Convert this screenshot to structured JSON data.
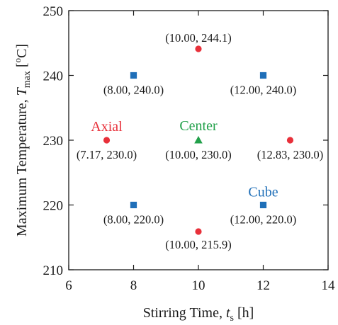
{
  "chart_data": {
    "type": "scatter",
    "xlabel_main": "Stirring Time, ",
    "xlabel_var": "t",
    "xlabel_sub": "s",
    "xlabel_unit": " [h]",
    "ylabel_main": "Maximum Temperature, ",
    "ylabel_var": "T",
    "ylabel_sub": "max",
    "ylabel_unit_open": " [",
    "ylabel_unit_sup": "o",
    "ylabel_unit_close": "C]",
    "xlim": [
      6,
      14
    ],
    "ylim": [
      210,
      250
    ],
    "xticks": [
      6,
      8,
      10,
      12,
      14
    ],
    "yticks": [
      210,
      220,
      230,
      240,
      250
    ],
    "grid": false,
    "series": [
      {
        "name": "Axial",
        "color": "#e8303a",
        "marker": "circle",
        "points": [
          {
            "x": 10.0,
            "y": 244.1,
            "label": "(10.00, 244.1)"
          },
          {
            "x": 7.17,
            "y": 230.0,
            "label": "(7.17, 230.0)"
          },
          {
            "x": 12.83,
            "y": 230.0,
            "label": "(12.83, 230.0)"
          },
          {
            "x": 10.0,
            "y": 215.9,
            "label": "(10.00, 215.9)"
          }
        ]
      },
      {
        "name": "Center",
        "color": "#22a04a",
        "marker": "triangle",
        "points": [
          {
            "x": 10.0,
            "y": 230.0,
            "label": "(10.00, 230.0)"
          }
        ]
      },
      {
        "name": "Cube",
        "color": "#1f6fb8",
        "marker": "square",
        "points": [
          {
            "x": 8.0,
            "y": 240.0,
            "label": "(8.00, 240.0)"
          },
          {
            "x": 12.0,
            "y": 240.0,
            "label": "(12.00, 240.0)"
          },
          {
            "x": 8.0,
            "y": 220.0,
            "label": "(8.00, 220.0)"
          },
          {
            "x": 12.0,
            "y": 220.0,
            "label": "(12.00, 220.0)"
          }
        ]
      }
    ]
  }
}
